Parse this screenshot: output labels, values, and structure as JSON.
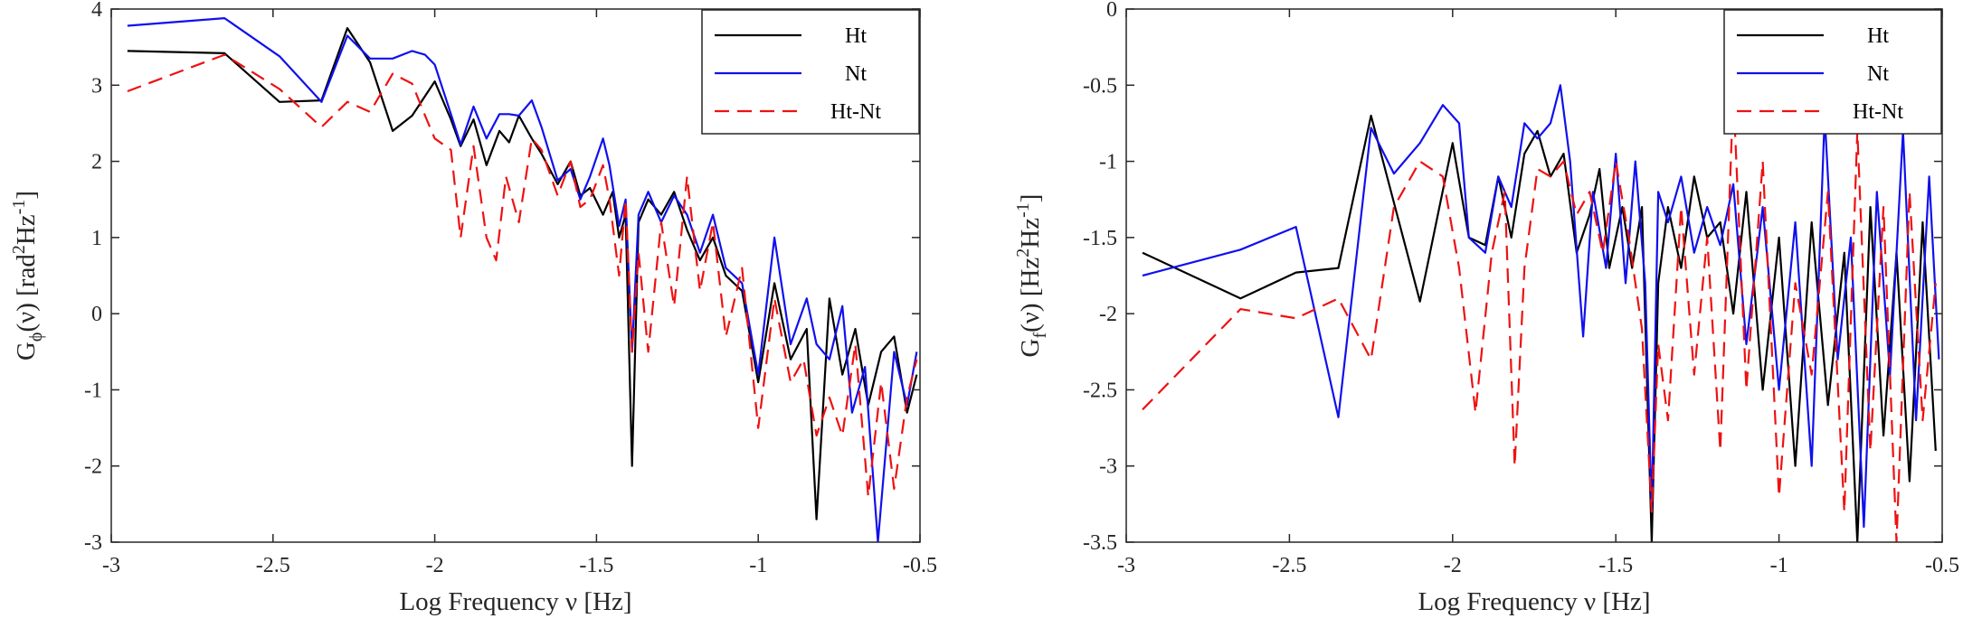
{
  "chart_data": [
    {
      "type": "line",
      "xlabel": "Log Frequency ν [Hz]",
      "ylabel": "G_φ(ν) [rad²Hz⁻¹]",
      "ylabel_parts": {
        "main": "G",
        "sub": "ϕ",
        "arg": "(ν) [rad",
        "sup1": "2",
        "mid": "Hz",
        "sup2": "-1",
        "end": "]"
      },
      "xlim": [
        -3,
        -0.5
      ],
      "ylim": [
        -3,
        4
      ],
      "xticks": [
        -3,
        -2.5,
        -2,
        -1.5,
        -1,
        -0.5
      ],
      "xtick_labels": [
        "-3",
        "-2.5",
        "-2",
        "-1.5",
        "-1",
        "-0.5"
      ],
      "yticks": [
        -3,
        -2,
        -1,
        0,
        1,
        2,
        3,
        4
      ],
      "ytick_labels": [
        "-3",
        "-2",
        "-1",
        "0",
        "1",
        "2",
        "3",
        "4"
      ],
      "legend_position": "top-right",
      "series": [
        {
          "name": "Ht",
          "color": "#000000",
          "dash": "solid",
          "x": [
            -2.95,
            -2.65,
            -2.48,
            -2.35,
            -2.27,
            -2.2,
            -2.13,
            -2.07,
            -2.0,
            -1.95,
            -1.92,
            -1.88,
            -1.84,
            -1.8,
            -1.77,
            -1.74,
            -1.7,
            -1.67,
            -1.62,
            -1.58,
            -1.55,
            -1.52,
            -1.48,
            -1.45,
            -1.43,
            -1.41,
            -1.39,
            -1.37,
            -1.34,
            -1.3,
            -1.26,
            -1.22,
            -1.18,
            -1.14,
            -1.1,
            -1.05,
            -1.0,
            -0.95,
            -0.9,
            -0.85,
            -0.82,
            -0.78,
            -0.74,
            -0.7,
            -0.66,
            -0.62,
            -0.58,
            -0.54,
            -0.51
          ],
          "values": [
            3.45,
            3.42,
            2.78,
            2.8,
            3.75,
            3.3,
            2.4,
            2.6,
            3.05,
            2.55,
            2.2,
            2.55,
            1.95,
            2.4,
            2.25,
            2.6,
            2.3,
            2.1,
            1.7,
            2.0,
            1.55,
            1.65,
            1.3,
            1.6,
            1.0,
            1.3,
            -2.0,
            1.2,
            1.5,
            1.3,
            1.6,
            1.1,
            0.7,
            1.0,
            0.5,
            0.3,
            -0.9,
            0.4,
            -0.6,
            -0.2,
            -2.7,
            0.2,
            -0.8,
            -0.2,
            -1.2,
            -0.5,
            -0.3,
            -1.3,
            -0.8
          ]
        },
        {
          "name": "Nt",
          "color": "#1010ee",
          "dash": "solid",
          "x": [
            -2.95,
            -2.65,
            -2.48,
            -2.35,
            -2.27,
            -2.2,
            -2.13,
            -2.07,
            -2.03,
            -2.0,
            -1.95,
            -1.92,
            -1.88,
            -1.84,
            -1.8,
            -1.77,
            -1.74,
            -1.7,
            -1.67,
            -1.62,
            -1.58,
            -1.55,
            -1.52,
            -1.48,
            -1.46,
            -1.43,
            -1.41,
            -1.39,
            -1.37,
            -1.34,
            -1.3,
            -1.26,
            -1.22,
            -1.18,
            -1.14,
            -1.1,
            -1.05,
            -1.0,
            -0.95,
            -0.9,
            -0.85,
            -0.82,
            -0.78,
            -0.74,
            -0.71,
            -0.67,
            -0.63,
            -0.58,
            -0.54,
            -0.51
          ],
          "values": [
            3.78,
            3.88,
            3.38,
            2.78,
            3.65,
            3.35,
            3.35,
            3.45,
            3.4,
            3.27,
            2.62,
            2.22,
            2.72,
            2.3,
            2.62,
            2.62,
            2.6,
            2.8,
            2.45,
            1.75,
            1.9,
            1.5,
            1.8,
            2.3,
            1.95,
            1.15,
            1.5,
            -0.5,
            1.3,
            1.6,
            1.2,
            1.55,
            1.3,
            0.8,
            1.3,
            0.6,
            0.4,
            -0.8,
            1.0,
            -0.4,
            0.2,
            -0.4,
            -0.6,
            0.1,
            -1.3,
            -0.7,
            -3.0,
            -0.5,
            -1.2,
            -0.5
          ]
        },
        {
          "name": "Ht-Nt",
          "color": "#ee1111",
          "dash": "dashed",
          "x": [
            -2.95,
            -2.65,
            -2.48,
            -2.35,
            -2.27,
            -2.2,
            -2.13,
            -2.07,
            -2.03,
            -2.0,
            -1.95,
            -1.92,
            -1.88,
            -1.84,
            -1.81,
            -1.78,
            -1.74,
            -1.7,
            -1.67,
            -1.62,
            -1.58,
            -1.55,
            -1.52,
            -1.48,
            -1.46,
            -1.43,
            -1.41,
            -1.39,
            -1.37,
            -1.34,
            -1.3,
            -1.26,
            -1.22,
            -1.18,
            -1.14,
            -1.1,
            -1.05,
            -1.0,
            -0.95,
            -0.9,
            -0.86,
            -0.82,
            -0.78,
            -0.74,
            -0.7,
            -0.66,
            -0.62,
            -0.58,
            -0.54,
            -0.51
          ],
          "values": [
            2.92,
            3.4,
            2.95,
            2.45,
            2.78,
            2.65,
            3.15,
            3.02,
            2.6,
            2.3,
            2.15,
            1.0,
            2.2,
            1.0,
            0.7,
            1.8,
            1.2,
            2.3,
            2.15,
            1.55,
            2.0,
            1.4,
            1.5,
            1.95,
            1.5,
            0.5,
            1.5,
            -0.5,
            0.8,
            -0.5,
            1.2,
            0.1,
            1.8,
            0.3,
            1.2,
            -0.3,
            0.6,
            -1.5,
            0.2,
            -0.9,
            -0.6,
            -1.6,
            -1.1,
            -1.6,
            -0.4,
            -2.4,
            -0.9,
            -2.3,
            -1.1,
            -0.6
          ]
        }
      ]
    },
    {
      "type": "line",
      "xlabel": "Log Frequency ν [Hz]",
      "ylabel": "G_f(ν) [Hz²Hz⁻¹]",
      "ylabel_parts": {
        "main": "G",
        "sub": "f",
        "arg": "(ν) [Hz",
        "sup1": "2",
        "mid": "Hz",
        "sup2": "-1",
        "end": "]"
      },
      "xlim": [
        -3,
        -0.5
      ],
      "ylim": [
        -3.5,
        0
      ],
      "xticks": [
        -3,
        -2.5,
        -2,
        -1.5,
        -1,
        -0.5
      ],
      "xtick_labels": [
        "-3",
        "-2.5",
        "-2",
        "-1.5",
        "-1",
        "-0.5"
      ],
      "yticks": [
        -3.5,
        -3,
        -2.5,
        -2,
        -1.5,
        -1,
        -0.5,
        0
      ],
      "ytick_labels": [
        "-3.5",
        "-3",
        "-2.5",
        "-2",
        "-1.5",
        "-1",
        "-0.5",
        "0"
      ],
      "legend_position": "top-right",
      "series": [
        {
          "name": "Ht",
          "color": "#000000",
          "dash": "solid",
          "x": [
            -2.95,
            -2.65,
            -2.48,
            -2.35,
            -2.25,
            -2.1,
            -2.0,
            -1.95,
            -1.9,
            -1.86,
            -1.82,
            -1.78,
            -1.74,
            -1.7,
            -1.66,
            -1.62,
            -1.58,
            -1.55,
            -1.52,
            -1.48,
            -1.45,
            -1.42,
            -1.39,
            -1.37,
            -1.34,
            -1.3,
            -1.26,
            -1.22,
            -1.18,
            -1.14,
            -1.1,
            -1.05,
            -1.0,
            -0.95,
            -0.9,
            -0.85,
            -0.8,
            -0.76,
            -0.72,
            -0.68,
            -0.64,
            -0.6,
            -0.56,
            -0.52
          ],
          "values": [
            -1.6,
            -1.9,
            -1.73,
            -1.7,
            -0.7,
            -1.92,
            -0.88,
            -1.5,
            -1.55,
            -1.1,
            -1.5,
            -0.95,
            -0.8,
            -1.1,
            -0.95,
            -1.6,
            -1.35,
            -1.05,
            -1.7,
            -1.3,
            -1.7,
            -1.3,
            -3.5,
            -1.8,
            -1.3,
            -1.7,
            -1.1,
            -1.5,
            -1.4,
            -2.0,
            -1.2,
            -2.5,
            -1.5,
            -3.0,
            -1.4,
            -2.6,
            -1.6,
            -3.5,
            -1.3,
            -2.8,
            -1.6,
            -3.1,
            -1.4,
            -2.9
          ]
        },
        {
          "name": "Nt",
          "color": "#1010ee",
          "dash": "solid",
          "x": [
            -2.95,
            -2.65,
            -2.48,
            -2.35,
            -2.25,
            -2.18,
            -2.1,
            -2.03,
            -1.98,
            -1.95,
            -1.9,
            -1.86,
            -1.82,
            -1.78,
            -1.74,
            -1.7,
            -1.67,
            -1.64,
            -1.6,
            -1.57,
            -1.53,
            -1.5,
            -1.47,
            -1.44,
            -1.41,
            -1.39,
            -1.37,
            -1.34,
            -1.3,
            -1.26,
            -1.22,
            -1.18,
            -1.14,
            -1.1,
            -1.05,
            -1.0,
            -0.95,
            -0.9,
            -0.86,
            -0.82,
            -0.78,
            -0.74,
            -0.7,
            -0.66,
            -0.62,
            -0.58,
            -0.54,
            -0.51
          ],
          "values": [
            -1.75,
            -1.58,
            -1.43,
            -2.68,
            -0.78,
            -1.08,
            -0.88,
            -0.63,
            -0.75,
            -1.5,
            -1.6,
            -1.1,
            -1.3,
            -0.75,
            -0.85,
            -0.75,
            -0.5,
            -1.0,
            -2.15,
            -1.2,
            -1.7,
            -0.95,
            -1.8,
            -1.0,
            -1.8,
            -3.3,
            -1.2,
            -1.4,
            -1.1,
            -1.6,
            -1.3,
            -1.55,
            -1.15,
            -2.2,
            -1.3,
            -2.5,
            -1.4,
            -3.0,
            -0.7,
            -2.3,
            -1.5,
            -3.4,
            -1.2,
            -2.4,
            -0.8,
            -2.7,
            -1.1,
            -2.3
          ]
        },
        {
          "name": "Ht-Nt",
          "color": "#ee1111",
          "dash": "dashed",
          "x": [
            -2.95,
            -2.65,
            -2.48,
            -2.35,
            -2.25,
            -2.18,
            -2.1,
            -2.03,
            -1.98,
            -1.93,
            -1.88,
            -1.84,
            -1.81,
            -1.78,
            -1.74,
            -1.7,
            -1.66,
            -1.62,
            -1.58,
            -1.54,
            -1.5,
            -1.46,
            -1.42,
            -1.39,
            -1.37,
            -1.34,
            -1.3,
            -1.26,
            -1.22,
            -1.18,
            -1.14,
            -1.1,
            -1.05,
            -1.0,
            -0.95,
            -0.9,
            -0.85,
            -0.8,
            -0.76,
            -0.72,
            -0.68,
            -0.64,
            -0.6,
            -0.56,
            -0.52
          ],
          "values": [
            -2.63,
            -1.97,
            -2.03,
            -1.9,
            -2.3,
            -1.3,
            -1.0,
            -1.1,
            -1.7,
            -2.65,
            -1.6,
            -1.2,
            -3.0,
            -1.7,
            -1.05,
            -1.1,
            -1.0,
            -1.35,
            -1.2,
            -1.6,
            -1.0,
            -1.5,
            -2.1,
            -3.3,
            -2.2,
            -2.7,
            -1.3,
            -2.4,
            -1.5,
            -2.9,
            -0.55,
            -2.5,
            -1.0,
            -3.2,
            -1.8,
            -2.4,
            -1.2,
            -3.3,
            -0.8,
            -2.9,
            -1.3,
            -3.5,
            -1.2,
            -2.7,
            -1.8
          ]
        }
      ]
    }
  ]
}
